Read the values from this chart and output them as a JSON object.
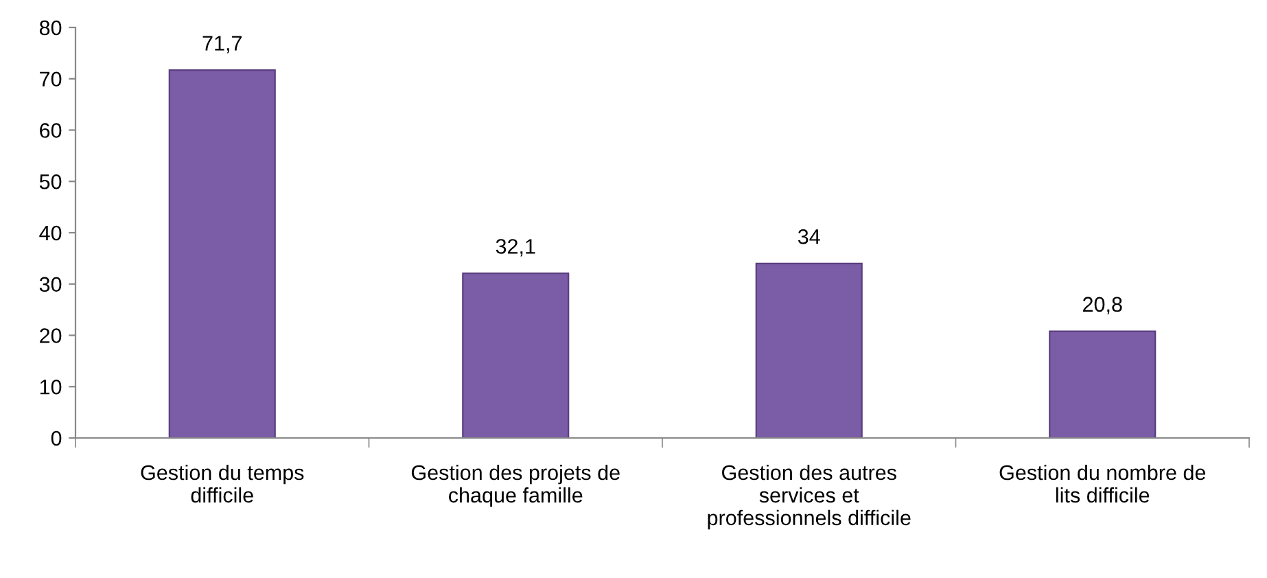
{
  "chart_data": {
    "type": "bar",
    "categories": [
      "Gestion du temps\ndifficile",
      "Gestion des projets de\nchaque famille",
      "Gestion des autres\nservices et\nprofessionnels difficile",
      "Gestion du nombre de\nlits difficile"
    ],
    "values": [
      71.7,
      32.1,
      34,
      20.8
    ],
    "value_labels": [
      "71,7",
      "32,1",
      "34",
      "20,8"
    ],
    "color": "#7b5ca6",
    "ylim": [
      0,
      80
    ],
    "yticks": [
      0,
      10,
      20,
      30,
      40,
      50,
      60,
      70,
      80
    ],
    "grid": false,
    "legend": false
  }
}
